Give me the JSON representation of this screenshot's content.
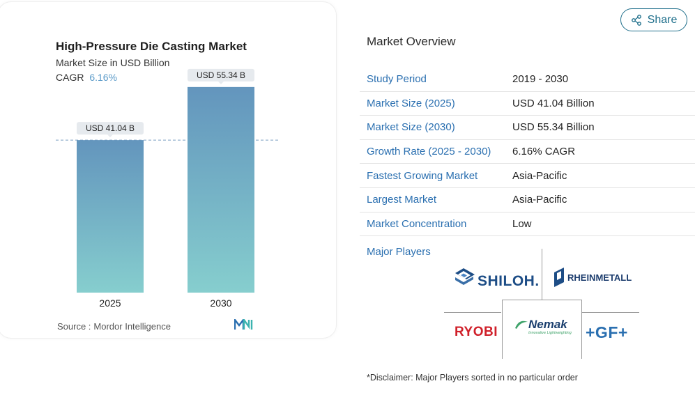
{
  "chart": {
    "title": "High-Pressure Die Casting Market",
    "subtitle": "Market Size in USD Billion",
    "cagr_label": "CAGR",
    "cagr_value": "6.16%",
    "source_label": "Source :",
    "source_value": "Mordor Intelligence"
  },
  "chart_data": {
    "type": "bar",
    "title": "High-Pressure Die Casting Market",
    "subtitle": "Market Size in USD Billion",
    "categories": [
      "2025",
      "2030"
    ],
    "values": [
      41.04,
      55.34
    ],
    "data_labels": [
      "USD 41.04 B",
      "USD 55.34 B"
    ],
    "reference_line": 41.04,
    "ylim": [
      0,
      60
    ],
    "grid": false,
    "colors": {
      "bar_top": "#6395bd",
      "bar_bottom": "#86cece",
      "label_bg": "#e6eaee",
      "ref_line": "#7a9fc2"
    }
  },
  "share": {
    "label": "Share",
    "icon": "share-icon"
  },
  "overview": {
    "title": "Market Overview",
    "rows": [
      {
        "key": "Study Period",
        "value": "2019 - 2030"
      },
      {
        "key": "Market Size (2025)",
        "value": "USD 41.04 Billion"
      },
      {
        "key": "Market Size (2030)",
        "value": "USD 55.34 Billion"
      },
      {
        "key": "Growth Rate (2025 - 2030)",
        "value": "6.16% CAGR"
      },
      {
        "key": "Fastest Growing Market",
        "value": "Asia-Pacific"
      },
      {
        "key": "Largest Market",
        "value": "Asia-Pacific"
      },
      {
        "key": "Market Concentration",
        "value": "Low"
      }
    ],
    "players_label": "Major Players",
    "players": {
      "shiloh": "SHILOH.",
      "rheinmetall": "RHEINMETALL",
      "ryobi": "RYOBI",
      "nemak": "Nemak",
      "nemak_tagline": "Innovative Lightweighting",
      "gf": "+GF+"
    }
  },
  "disclaimer": "*Disclaimer: Major Players sorted in no particular order",
  "colors": {
    "accent": "#2a6fb0",
    "share_border": "#1f6f8b"
  }
}
